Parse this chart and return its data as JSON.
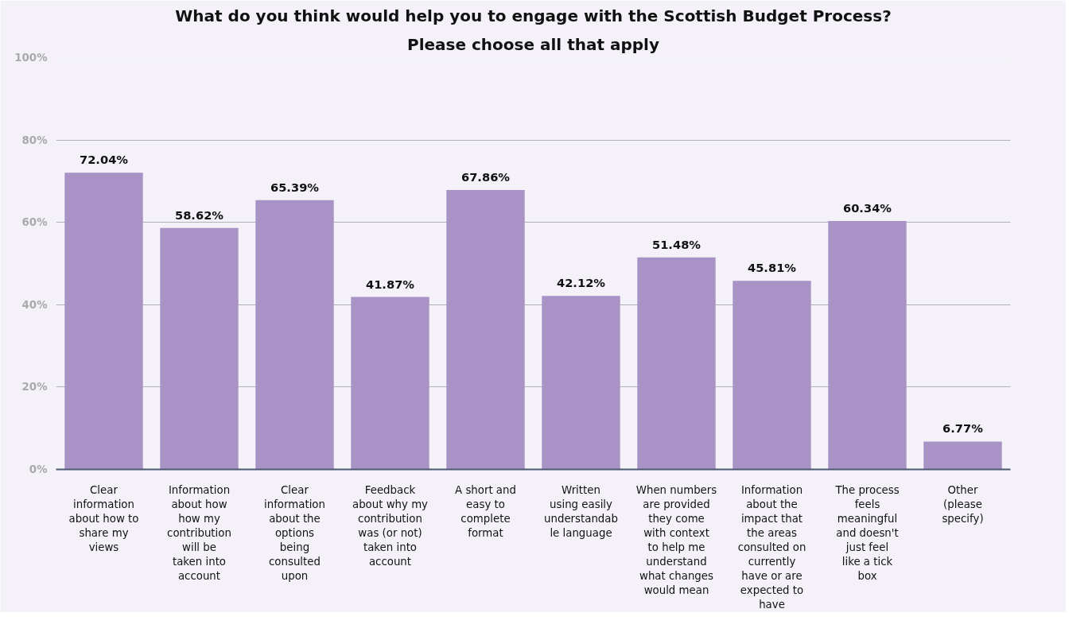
{
  "chart_data": {
    "type": "bar",
    "title": "What do you think would help you to engage with the Scottish Budget Process?",
    "subtitle": "Please choose all that apply",
    "categories": [
      "Clear information about how to share my views",
      "Information about how how my contribution will be taken into account",
      "Clear information about the options being consulted upon",
      "Feedback about why my contribution was (or not) taken into account",
      "A short and easy to complete format",
      "Written using easily understandable language",
      "When numbers are provided they come with context to help me understand what changes would mean",
      "Information about the impact that the areas consulted on currently have or are expected to have",
      "The process feels meaningful and doesn't just feel like a tick box",
      "Other (please specify)"
    ],
    "values": [
      72.04,
      58.62,
      65.39,
      41.87,
      67.86,
      42.12,
      51.48,
      45.81,
      60.34,
      6.77
    ],
    "color": "#a992c6",
    "value_labels": [
      "72.04%",
      "58.62%",
      "65.39%",
      "41.87%",
      "67.86%",
      "42.12%",
      "51.48%",
      "45.81%",
      "60.34%",
      "6.77%"
    ],
    "ylim": [
      0,
      100
    ],
    "yticks": [
      {
        "value": 0,
        "label": "0%"
      },
      {
        "value": 20,
        "label": "20%"
      },
      {
        "value": 40,
        "label": "40%"
      },
      {
        "value": 60,
        "label": "60%"
      },
      {
        "value": 80,
        "label": "80%"
      },
      {
        "value": 100,
        "label": "100%"
      }
    ],
    "grid": "y"
  }
}
